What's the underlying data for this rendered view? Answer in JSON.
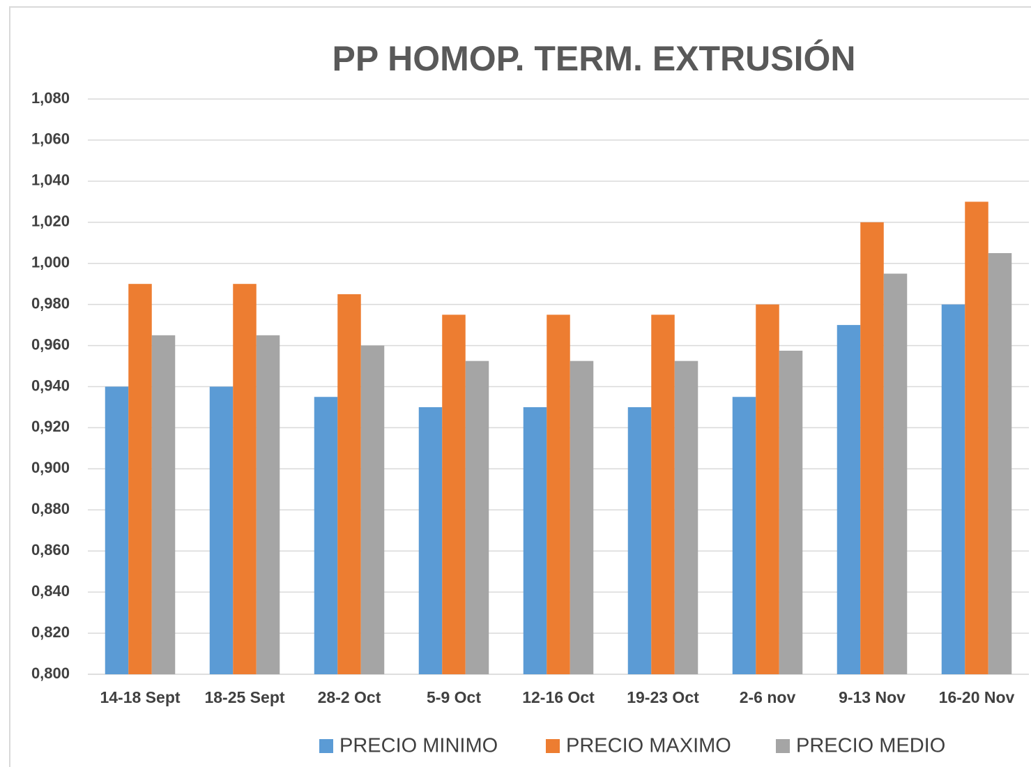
{
  "chart_data": {
    "type": "bar",
    "title": "PP HOMOP. TERM. EXTRUSIÓN",
    "categories": [
      "14-18 Sept",
      "18-25 Sept",
      "28-2 Oct",
      "5-9 Oct",
      "12-16 Oct",
      "19-23 Oct",
      "2-6 nov",
      "9-13 Nov",
      "16-20 Nov"
    ],
    "series": [
      {
        "name": "PRECIO MINIMO",
        "color": "#5b9bd5",
        "values": [
          0.94,
          0.94,
          0.935,
          0.93,
          0.93,
          0.93,
          0.935,
          0.97,
          0.98
        ]
      },
      {
        "name": "PRECIO MAXIMO",
        "color": "#ed7d31",
        "values": [
          0.99,
          0.99,
          0.985,
          0.975,
          0.975,
          0.975,
          0.98,
          1.02,
          1.03
        ]
      },
      {
        "name": "PRECIO MEDIO",
        "color": "#a5a5a5",
        "values": [
          0.965,
          0.965,
          0.96,
          0.9525,
          0.9525,
          0.9525,
          0.9575,
          0.995,
          1.005
        ]
      }
    ],
    "ylim": [
      0.8,
      1.08
    ],
    "yticks": [
      {
        "value": 0.8,
        "label": "0,800"
      },
      {
        "value": 0.82,
        "label": "0,820"
      },
      {
        "value": 0.84,
        "label": "0,840"
      },
      {
        "value": 0.86,
        "label": "0,860"
      },
      {
        "value": 0.88,
        "label": "0,880"
      },
      {
        "value": 0.9,
        "label": "0,900"
      },
      {
        "value": 0.92,
        "label": "0,920"
      },
      {
        "value": 0.94,
        "label": "0,940"
      },
      {
        "value": 0.96,
        "label": "0,960"
      },
      {
        "value": 0.98,
        "label": "0,980"
      },
      {
        "value": 1.0,
        "label": "1,000"
      },
      {
        "value": 1.02,
        "label": "1,020"
      },
      {
        "value": 1.04,
        "label": "1,040"
      },
      {
        "value": 1.06,
        "label": "1,060"
      },
      {
        "value": 1.08,
        "label": "1,080"
      }
    ],
    "grid": true,
    "legend": "bottom"
  }
}
